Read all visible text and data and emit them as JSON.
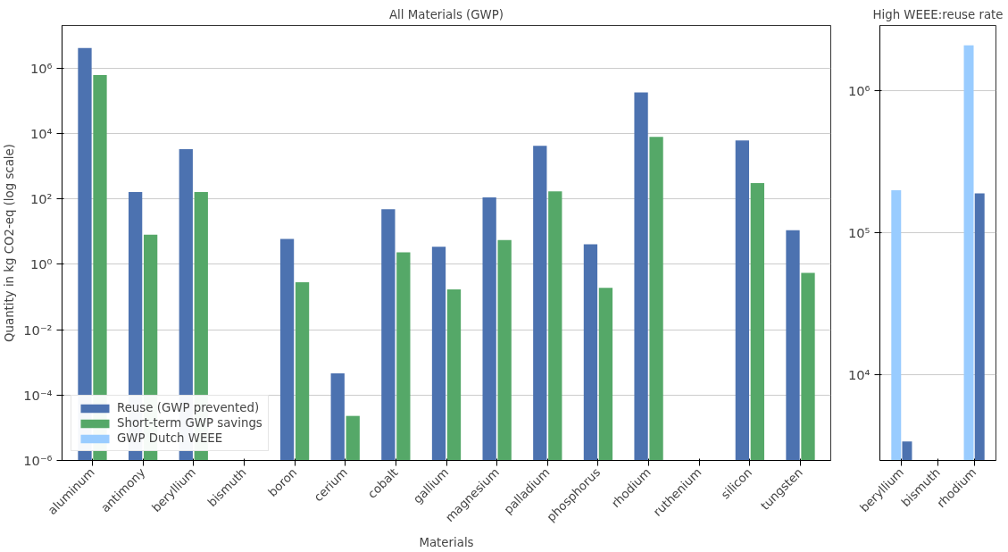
{
  "chart_data": [
    {
      "type": "bar",
      "title": "All Materials (GWP)",
      "xlabel": "Materials",
      "ylabel": "Quantity in kg CO2-eq (log scale)",
      "categories": [
        "aluminum",
        "antimony",
        "beryllium",
        "bismuth",
        "boron",
        "cerium",
        "cobalt",
        "gallium",
        "magnesium",
        "palladium",
        "phosphorus",
        "rhodium",
        "ruthenium",
        "silicon",
        "tungsten"
      ],
      "series": [
        {
          "name": "Reuse (GWP prevented)",
          "color": "#4c72b0",
          "values": [
            4100000.0,
            160,
            3300,
            null,
            5.9,
            0.00046,
            48,
            3.4,
            110,
            4200,
            4.1,
            180000.0,
            null,
            6100,
            11
          ]
        },
        {
          "name": "Short-term GWP savings",
          "color": "#55a868",
          "values": [
            610000.0,
            8,
            160,
            null,
            0.28,
            2.3e-05,
            2.3,
            0.17,
            5.5,
            170,
            0.19,
            7800,
            null,
            300,
            0.54
          ]
        },
        {
          "name": "GWP Dutch WEEE",
          "color": "#99ccff",
          "values": [
            null,
            null,
            null,
            null,
            null,
            null,
            null,
            null,
            null,
            null,
            null,
            null,
            null,
            null,
            null
          ]
        }
      ],
      "log": "y",
      "ylim": [
        1e-06,
        20000000.0
      ],
      "yticks": [
        {
          "value": 1e-06,
          "label": "10⁻⁶"
        },
        {
          "value": 0.0001,
          "label": "10⁻⁴"
        },
        {
          "value": 0.01,
          "label": "10⁻²"
        },
        {
          "value": 1,
          "label": "10⁰"
        },
        {
          "value": 100,
          "label": "10²"
        },
        {
          "value": 10000,
          "label": "10⁴"
        },
        {
          "value": 1000000.0,
          "label": "10⁶"
        }
      ],
      "grid": "y",
      "legend": "bottom left"
    },
    {
      "type": "bar",
      "title": "High WEEE:reuse rate",
      "categories": [
        "beryllium",
        "bismuth",
        "rhodium"
      ],
      "series": [
        {
          "color": "#99ccff",
          "values": [
            200000.0,
            null,
            2100000.0
          ]
        },
        {
          "color": "#4c72b0",
          "values": [
            3400,
            null,
            190000.0
          ]
        }
      ],
      "log": "y",
      "ylim": [
        2500,
        2900000.0
      ],
      "yticks": [
        {
          "value": 10000,
          "label": "10⁴"
        },
        {
          "value": 100000.0,
          "label": "10⁵"
        },
        {
          "value": 1000000.0,
          "label": "10⁶"
        }
      ],
      "grid": "y"
    }
  ]
}
